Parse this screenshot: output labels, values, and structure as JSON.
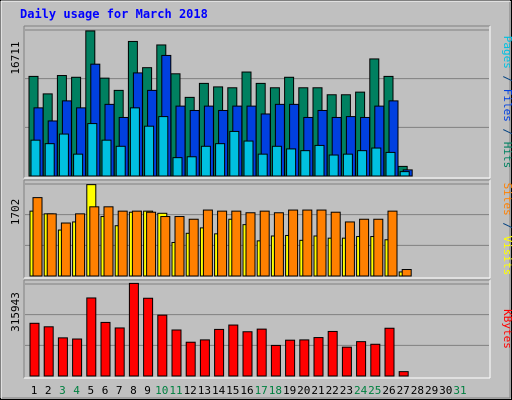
{
  "chart_data": {
    "type": "bar",
    "title": "Daily usage for March 2018",
    "categories": [
      "1",
      "2",
      "3",
      "4",
      "5",
      "6",
      "7",
      "8",
      "9",
      "10",
      "11",
      "12",
      "13",
      "14",
      "15",
      "16",
      "17",
      "18",
      "19",
      "20",
      "21",
      "22",
      "23",
      "24",
      "25",
      "26",
      "27",
      "28",
      "29",
      "30",
      "31"
    ],
    "weekend_days": [
      "3",
      "4",
      "10",
      "11",
      "17",
      "18",
      "24",
      "25",
      "31"
    ],
    "panels": [
      {
        "id": "top",
        "max_label": "16711",
        "ymax": 16711,
        "right_label_parts": [
          {
            "text": "Pages",
            "color": "#00c0e0"
          },
          {
            "text": " / ",
            "color": "#004080"
          },
          {
            "text": "Files",
            "color": "#0040e0"
          },
          {
            "text": " / ",
            "color": "#004080"
          },
          {
            "text": "Hits",
            "color": "#008060"
          }
        ],
        "series": [
          {
            "name": "Hits",
            "color": "#008060",
            "values": [
              11400,
              9400,
              11500,
              11300,
              16600,
              11200,
              9800,
              15400,
              12400,
              15000,
              11700,
              9000,
              10600,
              10200,
              10100,
              11900,
              10600,
              10100,
              11300,
              10100,
              10100,
              9300,
              9300,
              9600,
              13400,
              11400,
              1100,
              0,
              0,
              0,
              0
            ]
          },
          {
            "name": "Files",
            "color": "#0040e0",
            "values": [
              7800,
              6300,
              8600,
              7800,
              12800,
              8200,
              6700,
              11800,
              9800,
              13800,
              8000,
              7500,
              8000,
              7500,
              8000,
              8000,
              7100,
              8200,
              8200,
              6700,
              7500,
              6700,
              6800,
              6700,
              8000,
              8600,
              700,
              0,
              0,
              0,
              0
            ]
          },
          {
            "name": "Pages",
            "color": "#00c0e0",
            "values": [
              4100,
              3700,
              4800,
              2500,
              6000,
              4100,
              3400,
              7800,
              5700,
              6800,
              2100,
              2200,
              3400,
              3700,
              5100,
              4000,
              2500,
              3400,
              3100,
              2900,
              3500,
              2400,
              2500,
              2900,
              3200,
              2700,
              500,
              0,
              0,
              0,
              0
            ]
          }
        ]
      },
      {
        "id": "middle",
        "max_label": "1702",
        "ymax": 1702,
        "right_label_parts": [
          {
            "text": "Sites",
            "color": "#ff8000"
          },
          {
            "text": " / ",
            "color": "#004080"
          },
          {
            "text": "Visits",
            "color": "#ffff00"
          }
        ],
        "series": [
          {
            "name": "Visits",
            "color": "#ffff00",
            "values": [
              1200,
              1150,
              850,
              1000,
              1690,
              1100,
              930,
              1180,
              1200,
              1160,
              620,
              790,
              890,
              780,
              1050,
              950,
              650,
              740,
              750,
              660,
              740,
              700,
              700,
              730,
              730,
              670,
              75,
              0,
              0,
              0,
              0
            ]
          },
          {
            "name": "Sites",
            "color": "#ff8000",
            "values": [
              1450,
              1150,
              980,
              1150,
              1280,
              1280,
              1200,
              1200,
              1180,
              1100,
              1100,
              1050,
              1220,
              1200,
              1200,
              1170,
              1200,
              1170,
              1220,
              1220,
              1220,
              1180,
              1000,
              1050,
              1050,
              1200,
              120,
              0,
              0,
              0,
              0
            ]
          }
        ]
      },
      {
        "id": "bottom",
        "max_label": "315943",
        "ymax": 315943,
        "right_label_parts": [
          {
            "text": "KBytes",
            "color": "#ff0000"
          }
        ],
        "series": [
          {
            "name": "KBytes",
            "color": "#ff0000",
            "values": [
              181000,
              169000,
              131000,
              127000,
              268000,
              184000,
              165000,
              318000,
              267000,
              209000,
              158000,
              116000,
              124000,
              160000,
              175000,
              152000,
              161000,
              105000,
              123000,
              124000,
              132000,
              153000,
              99000,
              118000,
              109000,
              164000,
              15000,
              0,
              0,
              0,
              0
            ]
          }
        ]
      }
    ],
    "colors": {
      "background": "#c0c0c0",
      "title": "#0000ff",
      "day_label": "#000000",
      "weekend_label": "#008040"
    }
  }
}
